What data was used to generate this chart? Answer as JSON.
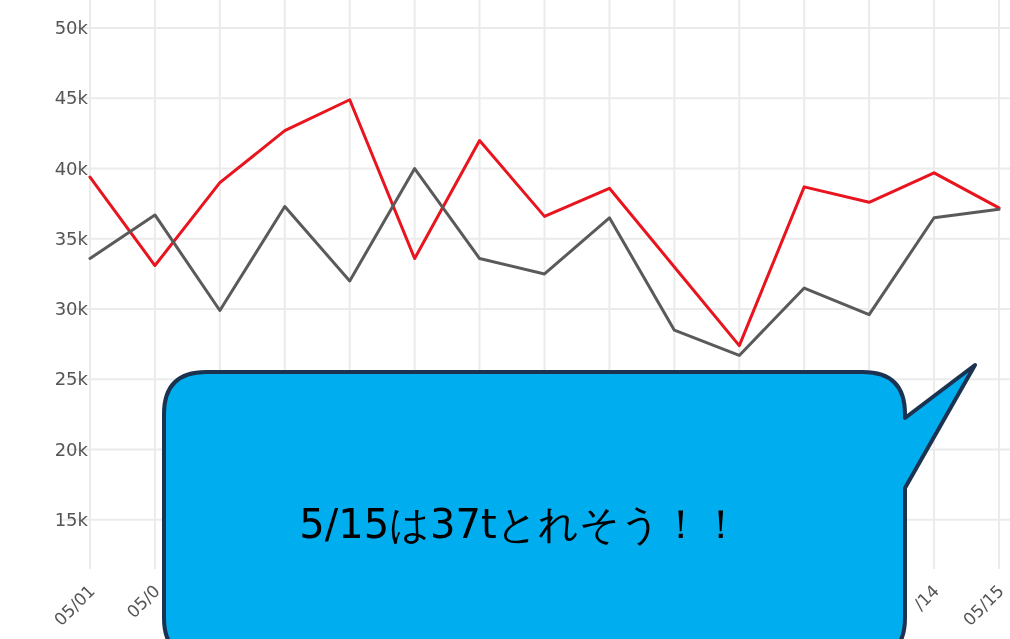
{
  "chart_data": {
    "type": "line",
    "categories": [
      "05/01",
      "05/0",
      null,
      null,
      null,
      null,
      null,
      null,
      null,
      null,
      null,
      null,
      null,
      "/14",
      "05/15"
    ],
    "series": [
      {
        "color": "#e8141e",
        "values": [
          39400,
          33100,
          39000,
          42700,
          44900,
          33600,
          42000,
          36600,
          38600,
          33000,
          27400,
          38700,
          37600,
          39700,
          37200
        ]
      },
      {
        "color": "#5a5a5a",
        "values": [
          33600,
          36700,
          29900,
          37300,
          32000,
          40000,
          33600,
          32500,
          36500,
          28500,
          26700,
          31500,
          29600,
          36500,
          37100
        ]
      }
    ],
    "ylim": [
      11500,
      52000
    ],
    "yticks": [
      {
        "value": 15000,
        "label": "15k"
      },
      {
        "value": 20000,
        "label": "20k"
      },
      {
        "value": 25000,
        "label": "25k"
      },
      {
        "value": 30000,
        "label": "30k"
      },
      {
        "value": 35000,
        "label": "35k"
      },
      {
        "value": 40000,
        "label": "40k"
      },
      {
        "value": 45000,
        "label": "45k"
      },
      {
        "value": 50000,
        "label": "50k"
      }
    ],
    "grid": true,
    "marker": "none",
    "line_style": "solid",
    "annotations": [
      "5/15は37tとれそう！！"
    ]
  }
}
